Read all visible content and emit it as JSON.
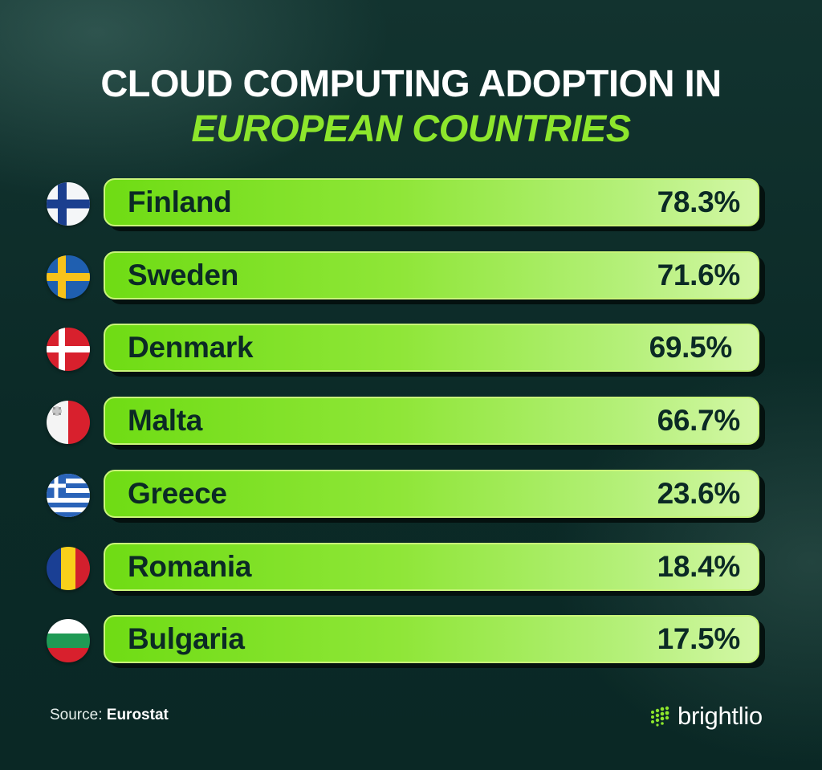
{
  "title": {
    "line1": "CLOUD COMPUTING ADOPTION IN",
    "line2": "EUROPEAN COUNTRIES"
  },
  "chart_data": {
    "type": "bar",
    "orientation": "horizontal",
    "categories": [
      "Finland",
      "Sweden",
      "Denmark",
      "Malta",
      "Greece",
      "Romania",
      "Bulgaria"
    ],
    "values": [
      78.3,
      71.6,
      69.5,
      66.7,
      23.6,
      18.4,
      17.5
    ],
    "value_labels": [
      "78.3%",
      "71.6%",
      "69.5%",
      "66.7%",
      "23.6%",
      "18.4%",
      "17.5%"
    ],
    "unit": "%",
    "title": "CLOUD COMPUTING ADOPTION IN EUROPEAN COUNTRIES",
    "xlabel": "",
    "ylabel": "",
    "grid": false,
    "legend": "none",
    "bar_color": "#8de62c"
  },
  "flags": [
    "finland-flag-icon",
    "sweden-flag-icon",
    "denmark-flag-icon",
    "malta-flag-icon",
    "greece-flag-icon",
    "romania-flag-icon",
    "bulgaria-flag-icon"
  ],
  "source": {
    "label": "Source: ",
    "value": "Eurostat"
  },
  "brand": {
    "name": "brightlio",
    "icon": "brightlio-dots-icon"
  },
  "colors": {
    "background": "#0c2b28",
    "title_white": "#ffffff",
    "title_accent": "#8de62c",
    "bar_text": "#0b2a25"
  }
}
